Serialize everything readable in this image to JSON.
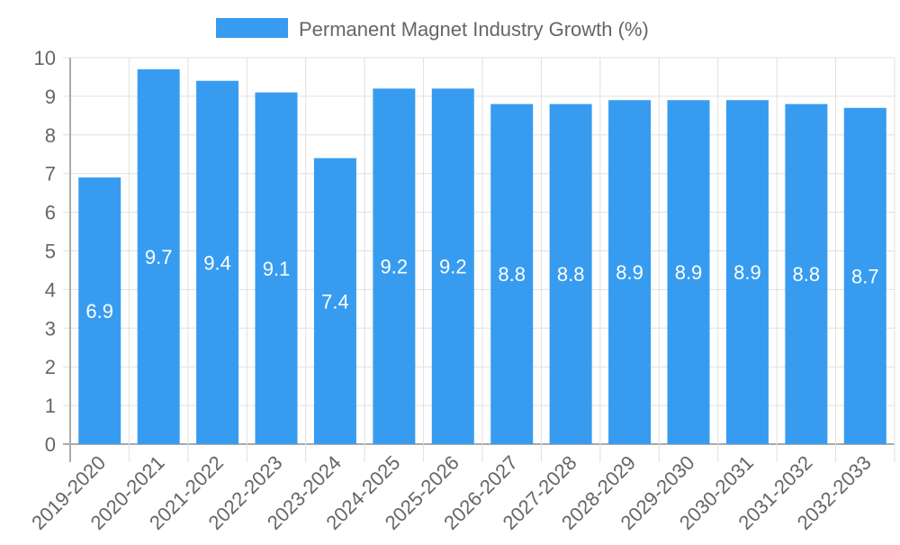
{
  "chart_data": {
    "type": "bar",
    "title": "",
    "legend": [
      {
        "label": "Permanent Magnet Industry Growth (%)",
        "color": "#379cf0"
      }
    ],
    "legend_position": "top-center",
    "categories": [
      "2019-2020",
      "2020-2021",
      "2021-2022",
      "2022-2023",
      "2023-2024",
      "2024-2025",
      "2025-2026",
      "2026-2027",
      "2027-2028",
      "2028-2029",
      "2029-2030",
      "2030-2031",
      "2031-2032",
      "2032-2033"
    ],
    "values": [
      6.9,
      9.7,
      9.4,
      9.1,
      7.4,
      9.2,
      9.2,
      8.8,
      8.8,
      8.9,
      8.9,
      8.9,
      8.8,
      8.7
    ],
    "data_labels": [
      "6.9",
      "9.7",
      "9.4",
      "9.1",
      "7.4",
      "9.2",
      "9.2",
      "8.8",
      "8.8",
      "8.9",
      "8.9",
      "8.9",
      "8.8",
      "8.7"
    ],
    "xlabel": "",
    "ylabel": "",
    "ylim": [
      0,
      10
    ],
    "yticks": [
      "0",
      "1",
      "2",
      "3",
      "4",
      "5",
      "6",
      "7",
      "8",
      "9",
      "10"
    ],
    "grid": true,
    "bar_color": "#379cf0"
  }
}
